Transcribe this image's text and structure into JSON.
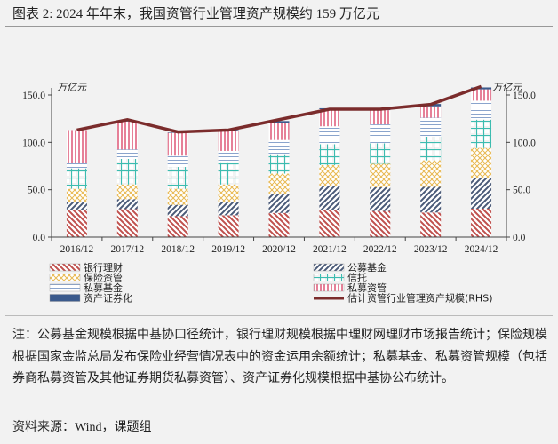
{
  "title": "图表 2:  2024 年年末，我国资管行业管理资产规模约 159 万亿元",
  "note": "注：公募基金规模根据中基协口径统计，银行理财规模根据中理财网理财市场报告统计；保险规模根据国家金监总局发布保险业经营情况表中的资金运用余额统计；私募基金、私募资管规模（包括券商私募资管及其他证券期货私募资管）、资产证券化规模根据中基协公布统计。",
  "source": "资料来源：Wind，课题组",
  "chart_data": {
    "type": "bar",
    "stacked": true,
    "categories": [
      "2016/12",
      "2017/12",
      "2018/12",
      "2019/12",
      "2020/12",
      "2021/12",
      "2022/12",
      "2023/12",
      "2024/12"
    ],
    "ylabel_left": "万亿元",
    "ylabel_right": "万亿元",
    "ylim": [
      0,
      150
    ],
    "yticks": [
      "0.0",
      "50.0",
      "100.0",
      "150.0"
    ],
    "grid": false,
    "legend_placement": "bottom",
    "series": [
      {
        "name": "银行理财",
        "color": "#c0504d",
        "pattern": "diagonal-back",
        "values": [
          29,
          29.5,
          22,
          23,
          25.5,
          29,
          27.5,
          26,
          30
        ]
      },
      {
        "name": "公募基金",
        "color": "#4a5a78",
        "pattern": "diagonal",
        "values": [
          8.5,
          10.5,
          12,
          14.5,
          20,
          25,
          25,
          27,
          32
        ]
      },
      {
        "name": "保险资管",
        "color": "#e8b850",
        "pattern": "crosshatch",
        "values": [
          13.5,
          15.5,
          17,
          18,
          21.5,
          22,
          25,
          28,
          32
        ]
      },
      {
        "name": "信托",
        "color": "#3cbcb0",
        "pattern": "grid",
        "values": [
          21.5,
          27,
          23,
          23.5,
          20.5,
          22,
          21.5,
          25,
          30
        ]
      },
      {
        "name": "私募基金",
        "color": "#8aa4cc",
        "pattern": "horizontal",
        "values": [
          5.5,
          10,
          12,
          12,
          15,
          19,
          20,
          20,
          20
        ]
      },
      {
        "name": "私募资管",
        "color": "#e0607e",
        "pattern": "vertical",
        "values": [
          35,
          29.5,
          24,
          21,
          18,
          18,
          15,
          12,
          12
        ]
      },
      {
        "name": "资产证券化",
        "color": "#3b5a8c",
        "pattern": "solid",
        "values": [
          0,
          0.5,
          0.5,
          1,
          2,
          1,
          1,
          2.5,
          2
        ]
      }
    ],
    "line": {
      "name": "估计资管行业管理资产规模(RHS)",
      "color": "#7b2c2c",
      "values": [
        113,
        124,
        111,
        113,
        124,
        135,
        135,
        140,
        159
      ]
    }
  }
}
